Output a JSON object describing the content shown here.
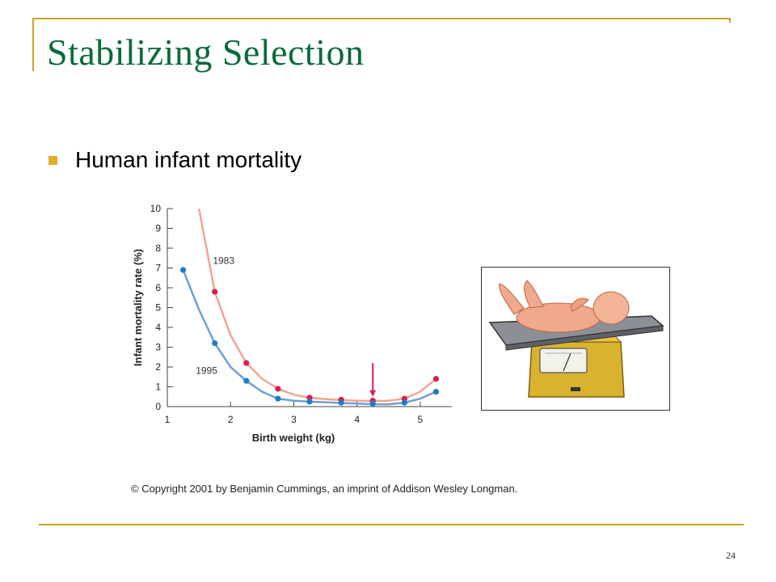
{
  "slide": {
    "title": "Stabilizing Selection",
    "bullet": "Human infant mortality",
    "copyright": "© Copyright 2001 by Benjamin Cummings, an imprint of Addison Wesley Longman.",
    "page_number": "24"
  },
  "colors": {
    "title": "#0b6b3a",
    "frame": "#c9a227",
    "bullet": "#e3ac2b",
    "series_1983_line": "#f2a58f",
    "series_1983_point": "#d81f4f",
    "series_1995_line": "#6f9fd8",
    "series_1995_point": "#1a7fc4",
    "arrow": "#d81f4f"
  },
  "chart_data": {
    "type": "line",
    "xlabel": "Birth weight (kg)",
    "ylabel": "Infant mortality rate (%)",
    "xlim": [
      1,
      5.5
    ],
    "ylim": [
      0,
      10
    ],
    "xticks": [
      1,
      2,
      3,
      4,
      5
    ],
    "yticks": [
      0,
      1,
      2,
      3,
      4,
      5,
      6,
      7,
      8,
      9,
      10
    ],
    "grid": false,
    "series": [
      {
        "name": "1983",
        "points": [
          {
            "x": 1.75,
            "y": 5.8
          },
          {
            "x": 2.25,
            "y": 2.2
          },
          {
            "x": 2.75,
            "y": 0.9
          },
          {
            "x": 3.25,
            "y": 0.45
          },
          {
            "x": 3.75,
            "y": 0.35
          },
          {
            "x": 4.25,
            "y": 0.3
          },
          {
            "x": 4.75,
            "y": 0.4
          },
          {
            "x": 5.25,
            "y": 1.4
          }
        ],
        "curve": [
          {
            "x": 1.5,
            "y": 10.0
          },
          {
            "x": 1.75,
            "y": 5.8
          },
          {
            "x": 2.0,
            "y": 3.6
          },
          {
            "x": 2.25,
            "y": 2.2
          },
          {
            "x": 2.5,
            "y": 1.4
          },
          {
            "x": 2.75,
            "y": 0.9
          },
          {
            "x": 3.0,
            "y": 0.6
          },
          {
            "x": 3.25,
            "y": 0.45
          },
          {
            "x": 3.5,
            "y": 0.38
          },
          {
            "x": 3.75,
            "y": 0.33
          },
          {
            "x": 4.0,
            "y": 0.3
          },
          {
            "x": 4.25,
            "y": 0.28
          },
          {
            "x": 4.5,
            "y": 0.3
          },
          {
            "x": 4.75,
            "y": 0.4
          },
          {
            "x": 5.0,
            "y": 0.75
          },
          {
            "x": 5.25,
            "y": 1.4
          }
        ]
      },
      {
        "name": "1995",
        "points": [
          {
            "x": 1.25,
            "y": 6.9
          },
          {
            "x": 1.75,
            "y": 3.2
          },
          {
            "x": 2.25,
            "y": 1.3
          },
          {
            "x": 2.75,
            "y": 0.4
          },
          {
            "x": 3.25,
            "y": 0.25
          },
          {
            "x": 3.75,
            "y": 0.2
          },
          {
            "x": 4.25,
            "y": 0.15
          },
          {
            "x": 4.75,
            "y": 0.2
          },
          {
            "x": 5.25,
            "y": 0.75
          }
        ],
        "curve": [
          {
            "x": 1.25,
            "y": 6.9
          },
          {
            "x": 1.5,
            "y": 4.9
          },
          {
            "x": 1.75,
            "y": 3.2
          },
          {
            "x": 2.0,
            "y": 2.0
          },
          {
            "x": 2.25,
            "y": 1.3
          },
          {
            "x": 2.5,
            "y": 0.75
          },
          {
            "x": 2.75,
            "y": 0.4
          },
          {
            "x": 3.0,
            "y": 0.3
          },
          {
            "x": 3.25,
            "y": 0.25
          },
          {
            "x": 3.5,
            "y": 0.22
          },
          {
            "x": 3.75,
            "y": 0.18
          },
          {
            "x": 4.0,
            "y": 0.15
          },
          {
            "x": 4.25,
            "y": 0.12
          },
          {
            "x": 4.5,
            "y": 0.12
          },
          {
            "x": 4.75,
            "y": 0.2
          },
          {
            "x": 5.0,
            "y": 0.4
          },
          {
            "x": 5.25,
            "y": 0.75
          }
        ]
      }
    ],
    "annotations": [
      {
        "type": "arrow",
        "x": 4.25,
        "y_from": 2.2,
        "y_to": 0.5
      }
    ]
  }
}
